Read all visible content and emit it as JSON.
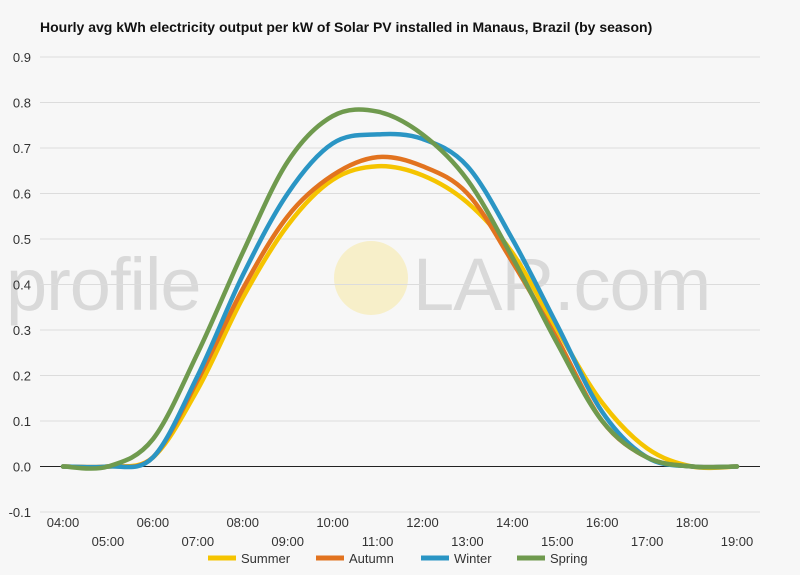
{
  "chart_data": {
    "type": "line",
    "title": "Hourly avg kWh electricity output per kW of Solar PV installed in Manaus, Brazil (by season)",
    "xlabel": "",
    "ylabel": "",
    "ylim": [
      -0.1,
      0.9
    ],
    "y_ticks": [
      "0.9",
      "0.8",
      "0.7",
      "0.6",
      "0.5",
      "0.4",
      "0.3",
      "0.2",
      "0.1",
      "0.0",
      "-0.1"
    ],
    "x_ticks": [
      "04:00",
      "05:00",
      "06:00",
      "07:00",
      "08:00",
      "09:00",
      "10:00",
      "11:00",
      "12:00",
      "13:00",
      "14:00",
      "15:00",
      "16:00",
      "17:00",
      "18:00",
      "19:00"
    ],
    "x": [
      4,
      5,
      6,
      7,
      8,
      9,
      10,
      11,
      12,
      13,
      14,
      15,
      16,
      17,
      18,
      19
    ],
    "grid": true,
    "legend_position": "bottom",
    "series": [
      {
        "name": "Summer",
        "color": "#f5c400",
        "values": [
          0.0,
          0.0,
          0.02,
          0.17,
          0.37,
          0.53,
          0.63,
          0.66,
          0.64,
          0.58,
          0.47,
          0.3,
          0.14,
          0.04,
          0.0,
          0.0
        ]
      },
      {
        "name": "Autumn",
        "color": "#e2731f",
        "values": [
          0.0,
          0.0,
          0.02,
          0.19,
          0.39,
          0.55,
          0.64,
          0.68,
          0.66,
          0.6,
          0.45,
          0.28,
          0.1,
          0.02,
          0.0,
          0.0
        ]
      },
      {
        "name": "Winter",
        "color": "#2a95c4",
        "values": [
          0.0,
          0.0,
          0.02,
          0.2,
          0.42,
          0.6,
          0.71,
          0.73,
          0.72,
          0.66,
          0.5,
          0.31,
          0.12,
          0.02,
          0.0,
          0.0
        ]
      },
      {
        "name": "Spring",
        "color": "#6f9a4e",
        "values": [
          0.0,
          0.0,
          0.06,
          0.25,
          0.47,
          0.67,
          0.77,
          0.78,
          0.73,
          0.63,
          0.46,
          0.27,
          0.1,
          0.02,
          0.0,
          0.0
        ]
      }
    ]
  },
  "watermark": {
    "left": "profile",
    "right": "LAR.com",
    "sun_color": "#f7efc9"
  }
}
